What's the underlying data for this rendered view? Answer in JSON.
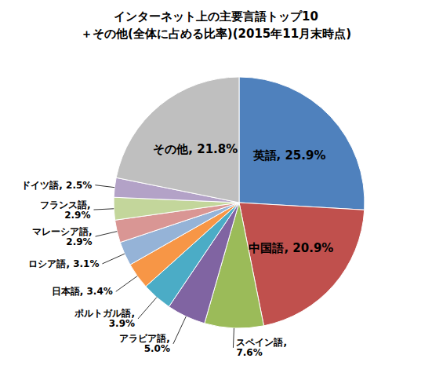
{
  "chart_data": {
    "type": "pie",
    "title": "インターネット上の主要言語トップ10",
    "subtitle": "＋その他(全体に占める比率)(2015年11月末時点)",
    "categories": [
      "英語",
      "中国語",
      "スペイン語",
      "アラビア語",
      "ポルトガル語",
      "日本語",
      "ロシア語",
      "マレーシア語",
      "フランス語",
      "ドイツ語",
      "その他"
    ],
    "values": [
      25.9,
      20.9,
      7.6,
      5.0,
      3.9,
      3.4,
      3.1,
      2.9,
      2.9,
      2.5,
      21.8
    ],
    "value_labels": [
      "英語, 25.9%",
      "中国語, 20.9%",
      "スペイン語, 7.6%",
      "アラビア語, 5.0%",
      "ポルトガル語, 3.9%",
      "日本語, 3.4%",
      "ロシア語, 3.1%",
      "マレーシア語, 2.9%",
      "フランス語, 2.9%",
      "ドイツ語, 2.5%",
      "その他, 21.8%"
    ],
    "colors": [
      "#4f81bd",
      "#c0504d",
      "#9bbb59",
      "#8064a2",
      "#4bacc6",
      "#f79646",
      "#95b3d7",
      "#d99694",
      "#c3d69b",
      "#b3a2c7",
      "#bfbfbf"
    ],
    "data_labels": true
  }
}
